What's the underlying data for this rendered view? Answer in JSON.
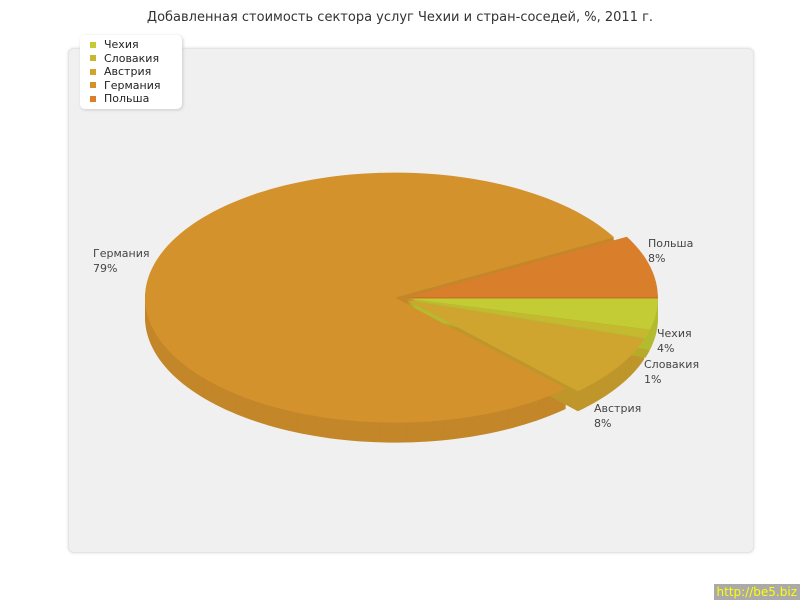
{
  "chart_data": {
    "type": "pie",
    "title": "Добавленная стоимость сектора услуг Чехии и стран-соседей, %, 2011 г.",
    "slices": [
      {
        "label": "Чехия",
        "value": 4,
        "display": "4%",
        "color": "#c3cc35"
      },
      {
        "label": "Словакия",
        "value": 1,
        "display": "1%",
        "color": "#c7b92f"
      },
      {
        "label": "Австрия",
        "value": 8,
        "display": "8%",
        "color": "#cfa42f"
      },
      {
        "label": "Германия",
        "value": 79,
        "display": "79%",
        "color": "#d4922d"
      },
      {
        "label": "Польша",
        "value": 8,
        "display": "8%",
        "color": "#d97f2c"
      }
    ],
    "legend_placement": "top-left",
    "style": "3d"
  },
  "watermark": "http://be5.biz"
}
